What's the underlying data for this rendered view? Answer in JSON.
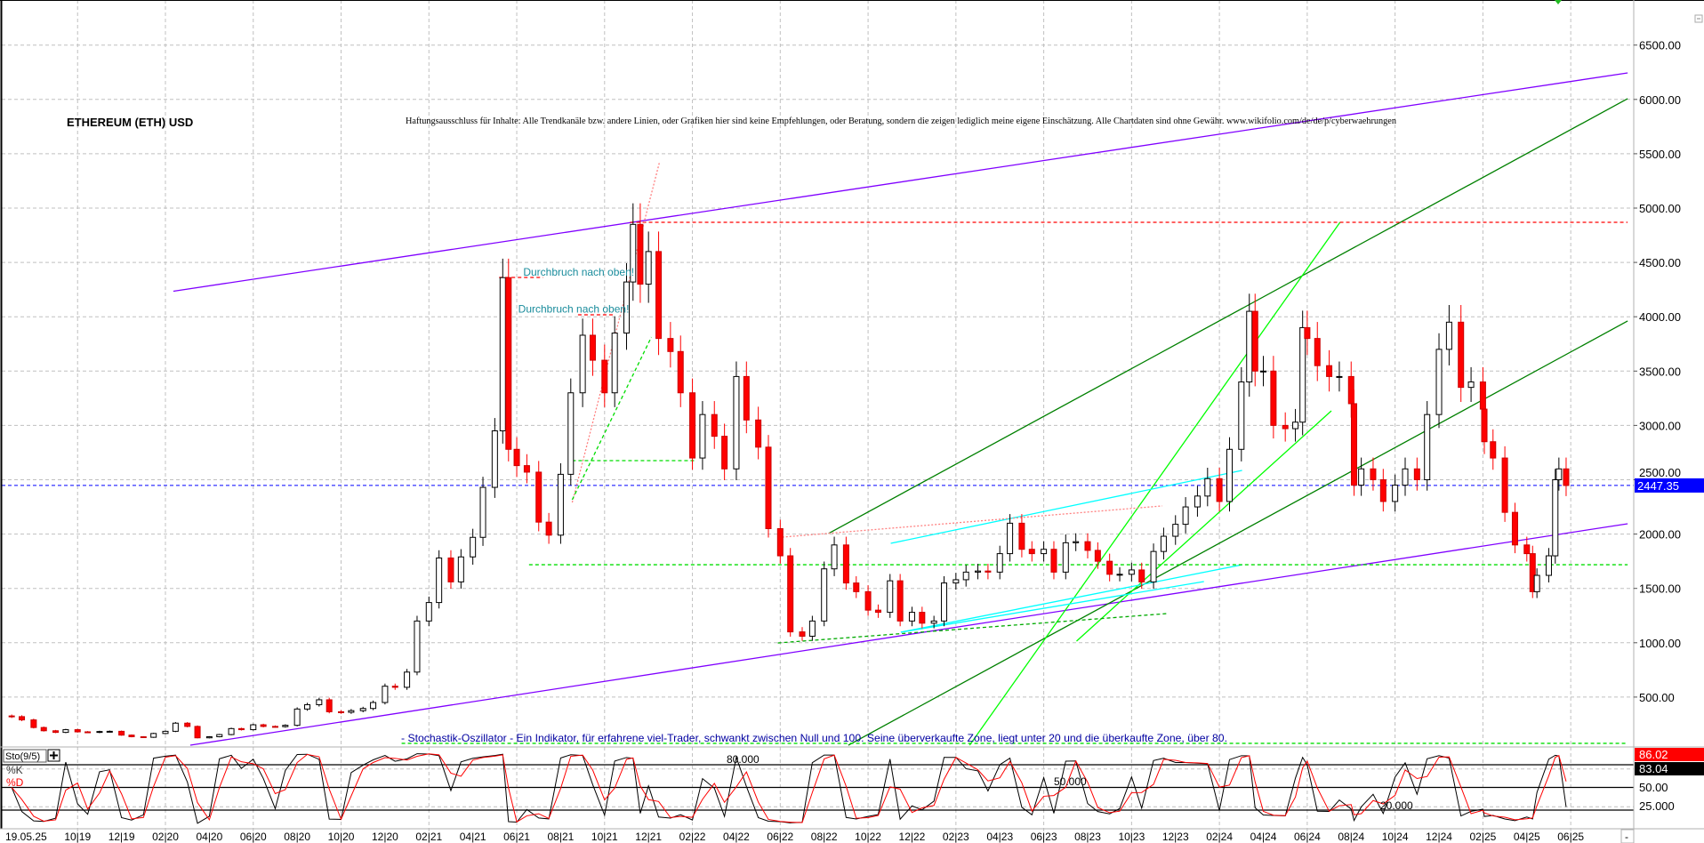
{
  "chart_data": {
    "type": "candlestick",
    "title": "ETHEREUM (ETH) USD",
    "disclaimer": "Haftungsausschluss für Inhalte: Alle Trendkanäle bzw. andere Linien, oder Grafiken hier sind keine Empfehlungen, oder Beratung, sondern die zeigen lediglich meine eigene Einschätzung. Alle Chartdaten sind ohne Gewähr.  www.wikifolio.com/de/de/p/cyberwaehrungen",
    "ylim": [
      0,
      6900
    ],
    "y_ticks": [
      "6500.00",
      "6000.00",
      "5500.00",
      "5000.00",
      "4500.00",
      "4000.00",
      "3500.00",
      "3000.00",
      "2500.00",
      "2000.00",
      "1500.00",
      "1000.00",
      "500.00"
    ],
    "grid": true,
    "last_price": "2447.35",
    "colors": {
      "up": "#ffffff",
      "down": "#ff0000",
      "last_price": "#0000ff",
      "purple": "#8000ff",
      "dark_green": "#008000",
      "light_green": "#00ff00",
      "cyan": "#00ffff",
      "red_dotted": "#ff0000",
      "annotation": "#1a8c9c"
    },
    "x_start_label": "19.05.25",
    "x_ticks": [
      {
        "date": "2019-10-01",
        "label": "10|19"
      },
      {
        "date": "2019-12-01",
        "label": "12|19"
      },
      {
        "date": "2020-02-01",
        "label": "02|20"
      },
      {
        "date": "2020-04-01",
        "label": "04|20"
      },
      {
        "date": "2020-06-01",
        "label": "06|20"
      },
      {
        "date": "2020-08-01",
        "label": "08|20"
      },
      {
        "date": "2020-10-01",
        "label": "10|20"
      },
      {
        "date": "2020-12-01",
        "label": "12|20"
      },
      {
        "date": "2021-02-01",
        "label": "02|21"
      },
      {
        "date": "2021-04-01",
        "label": "04|21"
      },
      {
        "date": "2021-06-01",
        "label": "06|21"
      },
      {
        "date": "2021-08-01",
        "label": "08|21"
      },
      {
        "date": "2021-10-01",
        "label": "10|21"
      },
      {
        "date": "2021-12-01",
        "label": "12|21"
      },
      {
        "date": "2022-02-01",
        "label": "02|22"
      },
      {
        "date": "2022-04-01",
        "label": "04|22"
      },
      {
        "date": "2022-06-01",
        "label": "06|22"
      },
      {
        "date": "2022-08-01",
        "label": "08|22"
      },
      {
        "date": "2022-10-01",
        "label": "10|22"
      },
      {
        "date": "2022-12-01",
        "label": "12|22"
      },
      {
        "date": "2023-02-01",
        "label": "02|23"
      },
      {
        "date": "2023-04-01",
        "label": "04|23"
      },
      {
        "date": "2023-06-01",
        "label": "06|23"
      },
      {
        "date": "2023-08-01",
        "label": "08|23"
      },
      {
        "date": "2023-10-01",
        "label": "10|23"
      },
      {
        "date": "2023-12-01",
        "label": "12|23"
      },
      {
        "date": "2024-02-01",
        "label": "02|24"
      },
      {
        "date": "2024-04-01",
        "label": "04|24"
      },
      {
        "date": "2024-06-01",
        "label": "06|24"
      },
      {
        "date": "2024-08-01",
        "label": "08|24"
      },
      {
        "date": "2024-10-01",
        "label": "10|24"
      },
      {
        "date": "2024-12-01",
        "label": "12|24"
      },
      {
        "date": "2025-02-01",
        "label": "02|25"
      },
      {
        "date": "2025-04-01",
        "label": "04|25"
      },
      {
        "date": "2025-06-01",
        "label": "06|25"
      }
    ],
    "closes": [
      [
        "2019-07-01",
        320
      ],
      [
        "2019-07-15",
        290
      ],
      [
        "2019-08-01",
        220
      ],
      [
        "2019-08-15",
        190
      ],
      [
        "2019-09-01",
        175
      ],
      [
        "2019-09-15",
        200
      ],
      [
        "2019-10-01",
        180
      ],
      [
        "2019-10-15",
        175
      ],
      [
        "2019-11-01",
        183
      ],
      [
        "2019-11-15",
        185
      ],
      [
        "2019-12-01",
        150
      ],
      [
        "2019-12-15",
        135
      ],
      [
        "2020-01-01",
        130
      ],
      [
        "2020-01-15",
        165
      ],
      [
        "2020-02-01",
        185
      ],
      [
        "2020-02-15",
        260
      ],
      [
        "2020-03-01",
        230
      ],
      [
        "2020-03-15",
        125
      ],
      [
        "2020-04-01",
        135
      ],
      [
        "2020-04-15",
        155
      ],
      [
        "2020-05-01",
        210
      ],
      [
        "2020-05-15",
        200
      ],
      [
        "2020-06-01",
        245
      ],
      [
        "2020-06-15",
        230
      ],
      [
        "2020-07-01",
        228
      ],
      [
        "2020-07-15",
        240
      ],
      [
        "2020-08-01",
        390
      ],
      [
        "2020-08-15",
        430
      ],
      [
        "2020-09-01",
        475
      ],
      [
        "2020-09-15",
        365
      ],
      [
        "2020-10-01",
        360
      ],
      [
        "2020-10-15",
        375
      ],
      [
        "2020-11-01",
        395
      ],
      [
        "2020-11-15",
        450
      ],
      [
        "2020-12-01",
        600
      ],
      [
        "2020-12-15",
        590
      ],
      [
        "2021-01-01",
        730
      ],
      [
        "2021-01-15",
        1200
      ],
      [
        "2021-02-01",
        1370
      ],
      [
        "2021-02-15",
        1780
      ],
      [
        "2021-03-01",
        1560
      ],
      [
        "2021-03-15",
        1790
      ],
      [
        "2021-04-01",
        1970
      ],
      [
        "2021-04-15",
        2430
      ],
      [
        "2021-05-01",
        2950
      ],
      [
        "2021-05-12",
        4360
      ],
      [
        "2021-05-20",
        2780
      ],
      [
        "2021-06-01",
        2630
      ],
      [
        "2021-06-15",
        2570
      ],
      [
        "2021-07-01",
        2110
      ],
      [
        "2021-07-15",
        1990
      ],
      [
        "2021-08-01",
        2550
      ],
      [
        "2021-08-15",
        3300
      ],
      [
        "2021-09-01",
        3830
      ],
      [
        "2021-09-15",
        3600
      ],
      [
        "2021-10-01",
        3300
      ],
      [
        "2021-10-15",
        3850
      ],
      [
        "2021-11-01",
        4320
      ],
      [
        "2021-11-10",
        4850
      ],
      [
        "2021-11-20",
        4300
      ],
      [
        "2021-12-01",
        4600
      ],
      [
        "2021-12-15",
        3800
      ],
      [
        "2022-01-01",
        3680
      ],
      [
        "2022-01-15",
        3300
      ],
      [
        "2022-02-01",
        2700
      ],
      [
        "2022-02-15",
        3100
      ],
      [
        "2022-03-01",
        2900
      ],
      [
        "2022-03-15",
        2600
      ],
      [
        "2022-04-01",
        3450
      ],
      [
        "2022-04-15",
        3050
      ],
      [
        "2022-05-01",
        2800
      ],
      [
        "2022-05-15",
        2050
      ],
      [
        "2022-06-01",
        1800
      ],
      [
        "2022-06-15",
        1100
      ],
      [
        "2022-07-01",
        1060
      ],
      [
        "2022-07-15",
        1200
      ],
      [
        "2022-08-01",
        1680
      ],
      [
        "2022-08-15",
        1900
      ],
      [
        "2022-09-01",
        1550
      ],
      [
        "2022-09-15",
        1470
      ],
      [
        "2022-10-01",
        1300
      ],
      [
        "2022-10-15",
        1280
      ],
      [
        "2022-11-01",
        1570
      ],
      [
        "2022-11-15",
        1200
      ],
      [
        "2022-12-01",
        1280
      ],
      [
        "2022-12-15",
        1180
      ],
      [
        "2023-01-01",
        1200
      ],
      [
        "2023-01-15",
        1550
      ],
      [
        "2023-02-01",
        1580
      ],
      [
        "2023-02-15",
        1650
      ],
      [
        "2023-03-01",
        1660
      ],
      [
        "2023-03-15",
        1650
      ],
      [
        "2023-04-01",
        1820
      ],
      [
        "2023-04-15",
        2100
      ],
      [
        "2023-05-01",
        1860
      ],
      [
        "2023-05-15",
        1820
      ],
      [
        "2023-06-01",
        1860
      ],
      [
        "2023-06-15",
        1650
      ],
      [
        "2023-07-01",
        1920
      ],
      [
        "2023-07-15",
        1930
      ],
      [
        "2023-08-01",
        1850
      ],
      [
        "2023-08-15",
        1750
      ],
      [
        "2023-09-01",
        1630
      ],
      [
        "2023-09-15",
        1630
      ],
      [
        "2023-10-01",
        1670
      ],
      [
        "2023-10-15",
        1560
      ],
      [
        "2023-11-01",
        1840
      ],
      [
        "2023-11-15",
        1980
      ],
      [
        "2023-12-01",
        2090
      ],
      [
        "2023-12-15",
        2250
      ],
      [
        "2024-01-01",
        2350
      ],
      [
        "2024-01-15",
        2510
      ],
      [
        "2024-02-01",
        2300
      ],
      [
        "2024-02-15",
        2780
      ],
      [
        "2024-03-01",
        3400
      ],
      [
        "2024-03-12",
        4050
      ],
      [
        "2024-03-20",
        3500
      ],
      [
        "2024-04-01",
        3500
      ],
      [
        "2024-04-15",
        3000
      ],
      [
        "2024-05-01",
        2970
      ],
      [
        "2024-05-15",
        3030
      ],
      [
        "2024-05-25",
        3900
      ],
      [
        "2024-06-01",
        3800
      ],
      [
        "2024-06-15",
        3550
      ],
      [
        "2024-07-01",
        3450
      ],
      [
        "2024-07-15",
        3450
      ],
      [
        "2024-08-01",
        3200
      ],
      [
        "2024-08-05",
        2450
      ],
      [
        "2024-08-15",
        2600
      ],
      [
        "2024-09-01",
        2500
      ],
      [
        "2024-09-15",
        2300
      ],
      [
        "2024-10-01",
        2450
      ],
      [
        "2024-10-15",
        2600
      ],
      [
        "2024-11-01",
        2500
      ],
      [
        "2024-11-15",
        3100
      ],
      [
        "2024-12-01",
        3700
      ],
      [
        "2024-12-15",
        3950
      ],
      [
        "2025-01-01",
        3350
      ],
      [
        "2025-01-15",
        3400
      ],
      [
        "2025-02-01",
        3150
      ],
      [
        "2025-02-03",
        2850
      ],
      [
        "2025-02-15",
        2700
      ],
      [
        "2025-03-01",
        2200
      ],
      [
        "2025-03-15",
        1900
      ],
      [
        "2025-04-01",
        1820
      ],
      [
        "2025-04-09",
        1470
      ],
      [
        "2025-04-15",
        1620
      ],
      [
        "2025-05-01",
        1800
      ],
      [
        "2025-05-10",
        2500
      ],
      [
        "2025-05-15",
        2600
      ],
      [
        "2025-05-25",
        2447.35
      ]
    ],
    "trendlines": [
      {
        "from": [
          "2020-02-12",
          4235
        ],
        "to": [
          "2025-08-19",
          6244
        ],
        "color": "#8000ff",
        "style": "solid"
      },
      {
        "from": [
          "2020-03-05",
          57
        ],
        "to": [
          "2025-08-19",
          2095
        ],
        "color": "#8000ff",
        "style": "solid"
      },
      {
        "from": [
          "2022-08-07",
          2005
        ],
        "to": [
          "2025-08-19",
          6007
        ],
        "color": "#008000",
        "style": "solid"
      },
      {
        "from": [
          "2022-09-04",
          57
        ],
        "to": [
          "2025-08-19",
          3961
        ],
        "color": "#008000",
        "style": "solid"
      },
      {
        "from": [
          "2023-02-20",
          57
        ],
        "to": [
          "2024-07-16",
          4869
        ],
        "color": "#00ff00",
        "style": "solid"
      },
      {
        "from": [
          "2023-07-16",
          1015
        ],
        "to": [
          "2024-07-04",
          3134
        ],
        "color": "#00ff00",
        "style": "solid"
      },
      {
        "from": [
          "2022-11-02",
          1915
        ],
        "to": [
          "2024-03-02",
          2586
        ],
        "color": "#00ffff",
        "style": "solid"
      },
      {
        "from": [
          "2022-11-16",
          1097
        ],
        "to": [
          "2024-03-02",
          1718
        ],
        "color": "#00ffff",
        "style": "solid"
      },
      {
        "from": [
          "2022-11-16",
          1097
        ],
        "to": [
          "2024-01-10",
          1563
        ],
        "color": "#00ffff",
        "style": "solid"
      },
      {
        "from": [
          "2021-11-06",
          4869
        ],
        "to": [
          "2025-08-19",
          4869
        ],
        "color": "#ff0000",
        "style": "dashed"
      },
      {
        "from": [
          "2021-08-17",
          2291
        ],
        "to": [
          "2021-12-16",
          5417
        ],
        "color": "#ff8080",
        "style": "dotted"
      },
      {
        "from": [
          "2021-05-07",
          4362
        ],
        "to": [
          "2021-07-07",
          4362
        ],
        "color": "#ff0000",
        "style": "dashed"
      },
      {
        "from": [
          "2021-08-25",
          4018
        ],
        "to": [
          "2021-10-13",
          4018
        ],
        "color": "#ff0000",
        "style": "dashed"
      },
      {
        "from": [
          "2022-06-04",
          1972
        ],
        "to": [
          "2023-11-13",
          2259
        ],
        "color": "#ff8080",
        "style": "dotted"
      },
      {
        "from": [
          "2021-06-18",
          1718
        ],
        "to": [
          "2025-08-19",
          1718
        ],
        "color": "#00dd00",
        "style": "dashed"
      },
      {
        "from": [
          "2021-08-17",
          2676
        ],
        "to": [
          "2022-02-04",
          2676
        ],
        "color": "#00dd00",
        "style": "dashed"
      },
      {
        "from": [
          "2021-08-17",
          2316
        ],
        "to": [
          "2021-12-05",
          3813
        ],
        "color": "#00dd00",
        "style": "dashed"
      },
      {
        "from": [
          "2020-12-24",
          74
        ],
        "to": [
          "2025-08-19",
          74
        ],
        "color": "#00dd00",
        "style": "dashed"
      },
      {
        "from": [
          "2022-05-28",
          998
        ],
        "to": [
          "2023-11-19",
          1268
        ],
        "color": "#00aa00",
        "style": "dashed"
      }
    ],
    "annotations": [
      {
        "text": "Durchbruch nach oben!",
        "date": "2021-06-10",
        "price": 4380
      },
      {
        "text": "Durchbruch nach oben!",
        "date": "2021-06-03",
        "price": 4040
      }
    ],
    "stochastic": {
      "label": "Sto(9/5)",
      "k_label": "%K",
      "d_label": "%D",
      "description": "- Stochastik-Oszillator - Ein Indikator, für erfahrene viel-Trader, schwankt zwischen Null und 100. Seine überverkaufte Zone, liegt unter 20 und die überkaufte Zone, über 80.",
      "levels": [
        80,
        50,
        20
      ],
      "level_labels": [
        "80.000",
        "50.000",
        "20.000"
      ],
      "ylim": [
        0,
        100
      ],
      "y_ticks": [
        "50.00",
        "25.000"
      ],
      "last_k": "86.02",
      "last_d": "83.04"
    }
  },
  "controls": {
    "scroll_label": "-"
  }
}
